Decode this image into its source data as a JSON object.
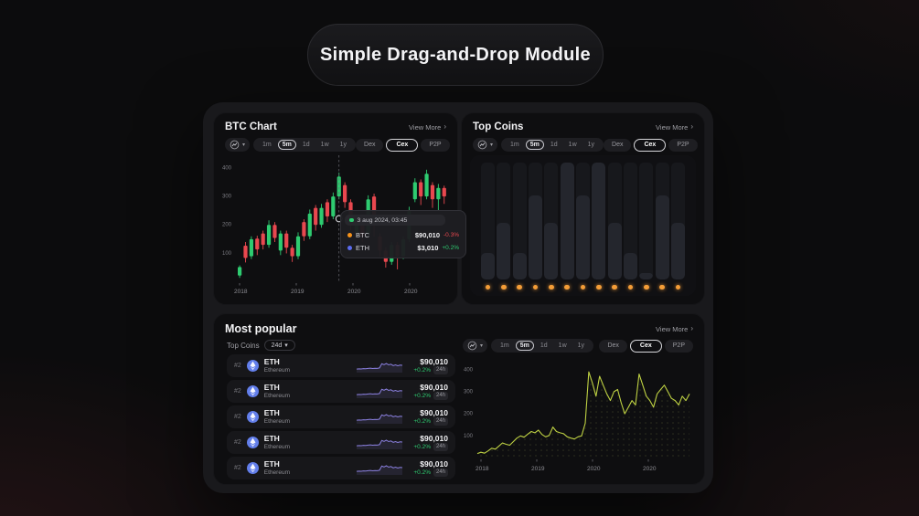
{
  "page": {
    "title": "Simple Drag-and-Drop Module"
  },
  "labels": {
    "view_more": "View More"
  },
  "icons": {
    "chevron_right": "›",
    "chevron_down": "▾",
    "chart_type_icon": "line-chart-in-circle"
  },
  "colors": {
    "green": "#2ecb70",
    "red": "#e8484f",
    "orange_dot": "#f49d37",
    "btc_dot": "#f7931a",
    "eth_dot": "#5b6cf0",
    "tooltip_date_dot": "#2ecb70",
    "spark_purple": "#8b80e0",
    "line_lime": "#bfd243",
    "eth_icon_blue": "#627eea"
  },
  "controls": {
    "timeframes": [
      "1m",
      "5m",
      "1d",
      "1w",
      "1y"
    ],
    "selected_timeframe": "5m",
    "markets": [
      "Dex",
      "Cex",
      "P2P"
    ],
    "selected_market": "Cex"
  },
  "btc_panel": {
    "title": "BTC Chart",
    "tooltip": {
      "date": "3 aug 2024, 03:45",
      "rows": [
        {
          "symbol": "BTC",
          "price": "$90,010",
          "change": "-0.3%",
          "direction": "down"
        },
        {
          "symbol": "ETH",
          "price": "$3,010",
          "change": "+0.2%",
          "direction": "up"
        }
      ]
    },
    "chart_data": {
      "type": "candlestick",
      "y_ticks": [
        400,
        300,
        200,
        100
      ],
      "x_ticks": [
        "2018",
        "2019",
        "2020",
        "2020"
      ],
      "ylim": [
        0,
        430
      ],
      "crosshair_index": 17,
      "crosshair_value": 220,
      "candle_format": "[open, close, low, high]",
      "candles": [
        [
          20,
          50,
          12,
          56
        ],
        [
          125,
          82,
          66,
          138
        ],
        [
          88,
          148,
          78,
          158
        ],
        [
          150,
          112,
          92,
          160
        ],
        [
          168,
          128,
          112,
          178
        ],
        [
          128,
          198,
          118,
          214
        ],
        [
          198,
          152,
          138,
          208
        ],
        [
          108,
          168,
          92,
          178
        ],
        [
          168,
          118,
          98,
          178
        ],
        [
          118,
          88,
          68,
          128
        ],
        [
          88,
          158,
          78,
          172
        ],
        [
          208,
          158,
          142,
          218
        ],
        [
          158,
          238,
          148,
          252
        ],
        [
          258,
          198,
          178,
          268
        ],
        [
          198,
          258,
          188,
          272
        ],
        [
          278,
          228,
          208,
          288
        ],
        [
          228,
          298,
          218,
          312
        ],
        [
          298,
          368,
          288,
          382
        ],
        [
          338,
          278,
          258,
          348
        ],
        [
          278,
          198,
          178,
          288
        ],
        [
          168,
          212,
          152,
          222
        ],
        [
          212,
          158,
          138,
          222
        ],
        [
          168,
          288,
          158,
          302
        ],
        [
          298,
          228,
          158,
          308
        ],
        [
          158,
          108,
          88,
          168
        ],
        [
          108,
          68,
          48,
          118
        ],
        [
          68,
          128,
          58,
          138
        ],
        [
          128,
          88,
          42,
          138
        ],
        [
          88,
          148,
          78,
          158
        ],
        [
          148,
          248,
          138,
          262
        ],
        [
          288,
          348,
          278,
          362
        ],
        [
          348,
          298,
          268,
          358
        ],
        [
          298,
          378,
          288,
          392
        ],
        [
          338,
          288,
          258,
          348
        ],
        [
          288,
          328,
          248,
          342
        ],
        [
          328,
          298,
          272,
          336
        ]
      ]
    }
  },
  "top_coins_panel": {
    "title": "Top Coins",
    "chart_data": {
      "type": "bar",
      "values_pct": [
        22,
        48,
        22,
        72,
        48,
        100,
        72,
        100,
        48,
        22,
        5,
        72,
        48
      ]
    }
  },
  "most_popular": {
    "title": "Most popular",
    "filter": {
      "label": "Top Coins",
      "value": "24d"
    },
    "rows": [
      {
        "rank": "#2",
        "symbol": "ETH",
        "name": "Ethereum",
        "price": "$90,010",
        "change": "+0.2%",
        "direction": "up",
        "period": "24h"
      },
      {
        "rank": "#2",
        "symbol": "ETH",
        "name": "Ethereum",
        "price": "$90,010",
        "change": "+0.2%",
        "direction": "up",
        "period": "24h"
      },
      {
        "rank": "#2",
        "symbol": "ETH",
        "name": "Ethereum",
        "price": "$90,010",
        "change": "+0.2%",
        "direction": "up",
        "period": "24h"
      },
      {
        "rank": "#2",
        "symbol": "ETH",
        "name": "Ethereum",
        "price": "$90,010",
        "change": "+0.2%",
        "direction": "up",
        "period": "24h"
      },
      {
        "rank": "#2",
        "symbol": "ETH",
        "name": "Ethereum",
        "price": "$90,010",
        "change": "+0.2%",
        "direction": "up",
        "period": "24h"
      }
    ],
    "sparkline": [
      20,
      22,
      21,
      24,
      23,
      26,
      28,
      25,
      27,
      26,
      30,
      68,
      60,
      72,
      58,
      64,
      52,
      58,
      50,
      56,
      54
    ],
    "chart_data": {
      "type": "line",
      "y_ticks": [
        400,
        300,
        200,
        100
      ],
      "x_ticks": [
        "2018",
        "2019",
        "2020",
        "2020"
      ],
      "ylim": [
        0,
        430
      ],
      "values": [
        18,
        24,
        20,
        30,
        42,
        38,
        52,
        66,
        60,
        56,
        72,
        88,
        98,
        92,
        106,
        118,
        112,
        124,
        104,
        94,
        100,
        138,
        118,
        112,
        108,
        94,
        88,
        84,
        94,
        98,
        155,
        388,
        338,
        278,
        368,
        328,
        288,
        258,
        298,
        308,
        248,
        198,
        228,
        258,
        238,
        378,
        328,
        278,
        258,
        228,
        288,
        308,
        328,
        298,
        268,
        258,
        238,
        278,
        258,
        288
      ]
    }
  }
}
